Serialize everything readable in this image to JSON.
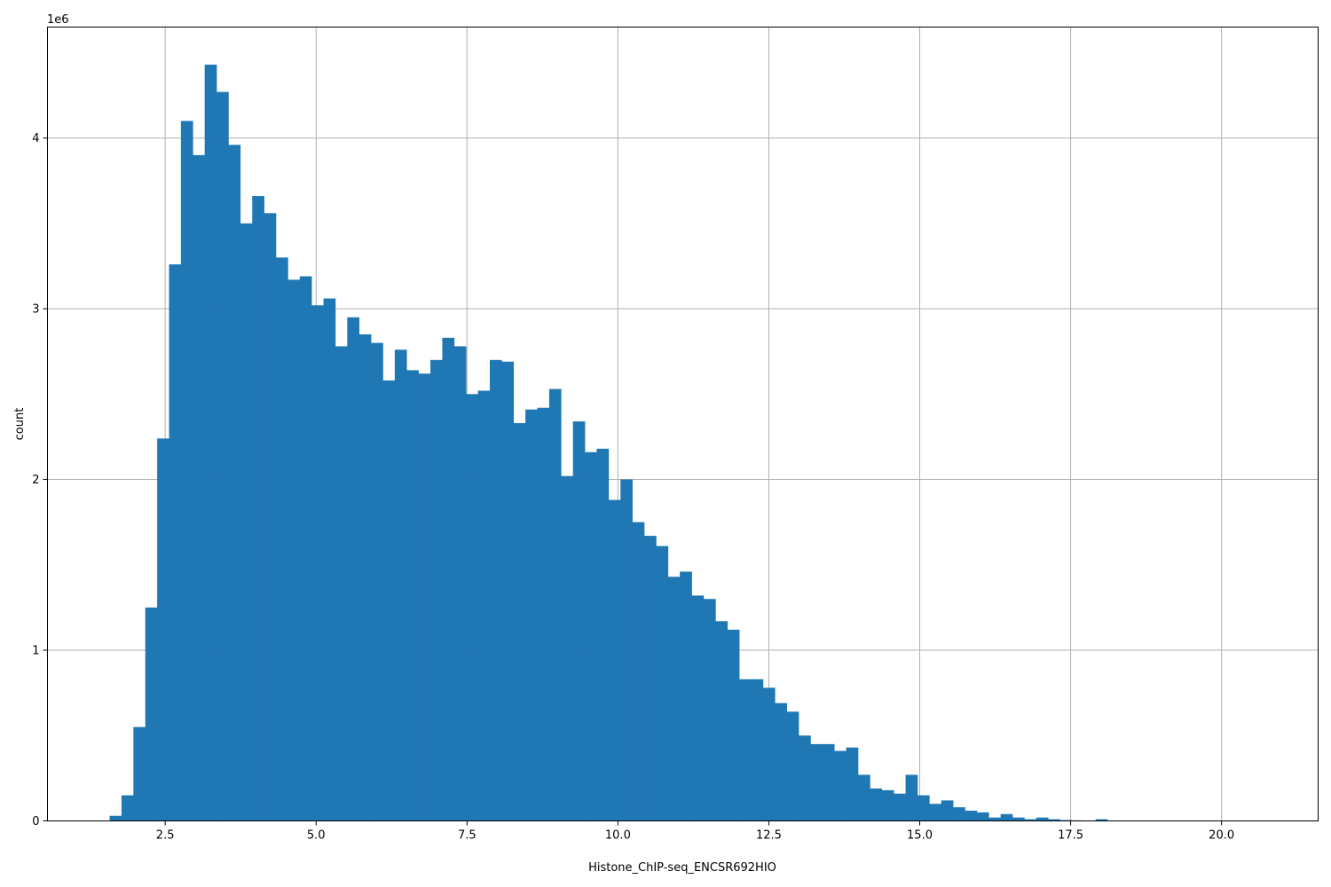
{
  "chart_data": {
    "type": "bar",
    "subtype": "histogram",
    "title": "",
    "xlabel": "Histone_ChIP-seq_ENCSR692HIO",
    "ylabel": "count",
    "y_offset_label": "1e6",
    "xlim": [
      0.55,
      21.6
    ],
    "ylim": [
      0,
      4.65
    ],
    "bin_start": 1.58,
    "bin_width": 0.1968,
    "x_ticks": [
      2.5,
      5.0,
      7.5,
      10.0,
      12.5,
      15.0,
      17.5,
      20.0
    ],
    "x_tick_labels": [
      "2.5",
      "5.0",
      "7.5",
      "10.0",
      "12.5",
      "15.0",
      "17.5",
      "20.0"
    ],
    "y_ticks": [
      0,
      1,
      2,
      3,
      4
    ],
    "y_tick_labels": [
      "0",
      "1",
      "2",
      "3",
      "4"
    ],
    "grid": true,
    "bar_color": "#1f77b4",
    "values": [
      0.03,
      0.15,
      0.55,
      1.25,
      2.24,
      3.26,
      4.1,
      3.9,
      4.43,
      4.27,
      3.96,
      3.5,
      3.66,
      3.56,
      3.3,
      3.17,
      3.19,
      3.02,
      3.06,
      2.78,
      2.95,
      2.85,
      2.8,
      2.58,
      2.76,
      2.64,
      2.62,
      2.7,
      2.83,
      2.78,
      2.5,
      2.52,
      2.7,
      2.69,
      2.33,
      2.41,
      2.42,
      2.53,
      2.02,
      2.34,
      2.16,
      2.18,
      1.88,
      2.0,
      1.75,
      1.67,
      1.61,
      1.43,
      1.46,
      1.32,
      1.3,
      1.17,
      1.12,
      0.83,
      0.83,
      0.78,
      0.69,
      0.64,
      0.5,
      0.45,
      0.45,
      0.41,
      0.43,
      0.27,
      0.19,
      0.18,
      0.16,
      0.27,
      0.15,
      0.1,
      0.12,
      0.08,
      0.06,
      0.05,
      0.02,
      0.04,
      0.02,
      0.01,
      0.02,
      0.01,
      0.005,
      0.003,
      0.002,
      0.01,
      0.002,
      0.001,
      0.001,
      0.001,
      0.0005,
      0.0005,
      0.0003,
      0.0003,
      0.0002,
      0.0002,
      0.0001,
      0.0001,
      0.0001,
      0.0001,
      0.0001,
      0.0001
    ]
  }
}
